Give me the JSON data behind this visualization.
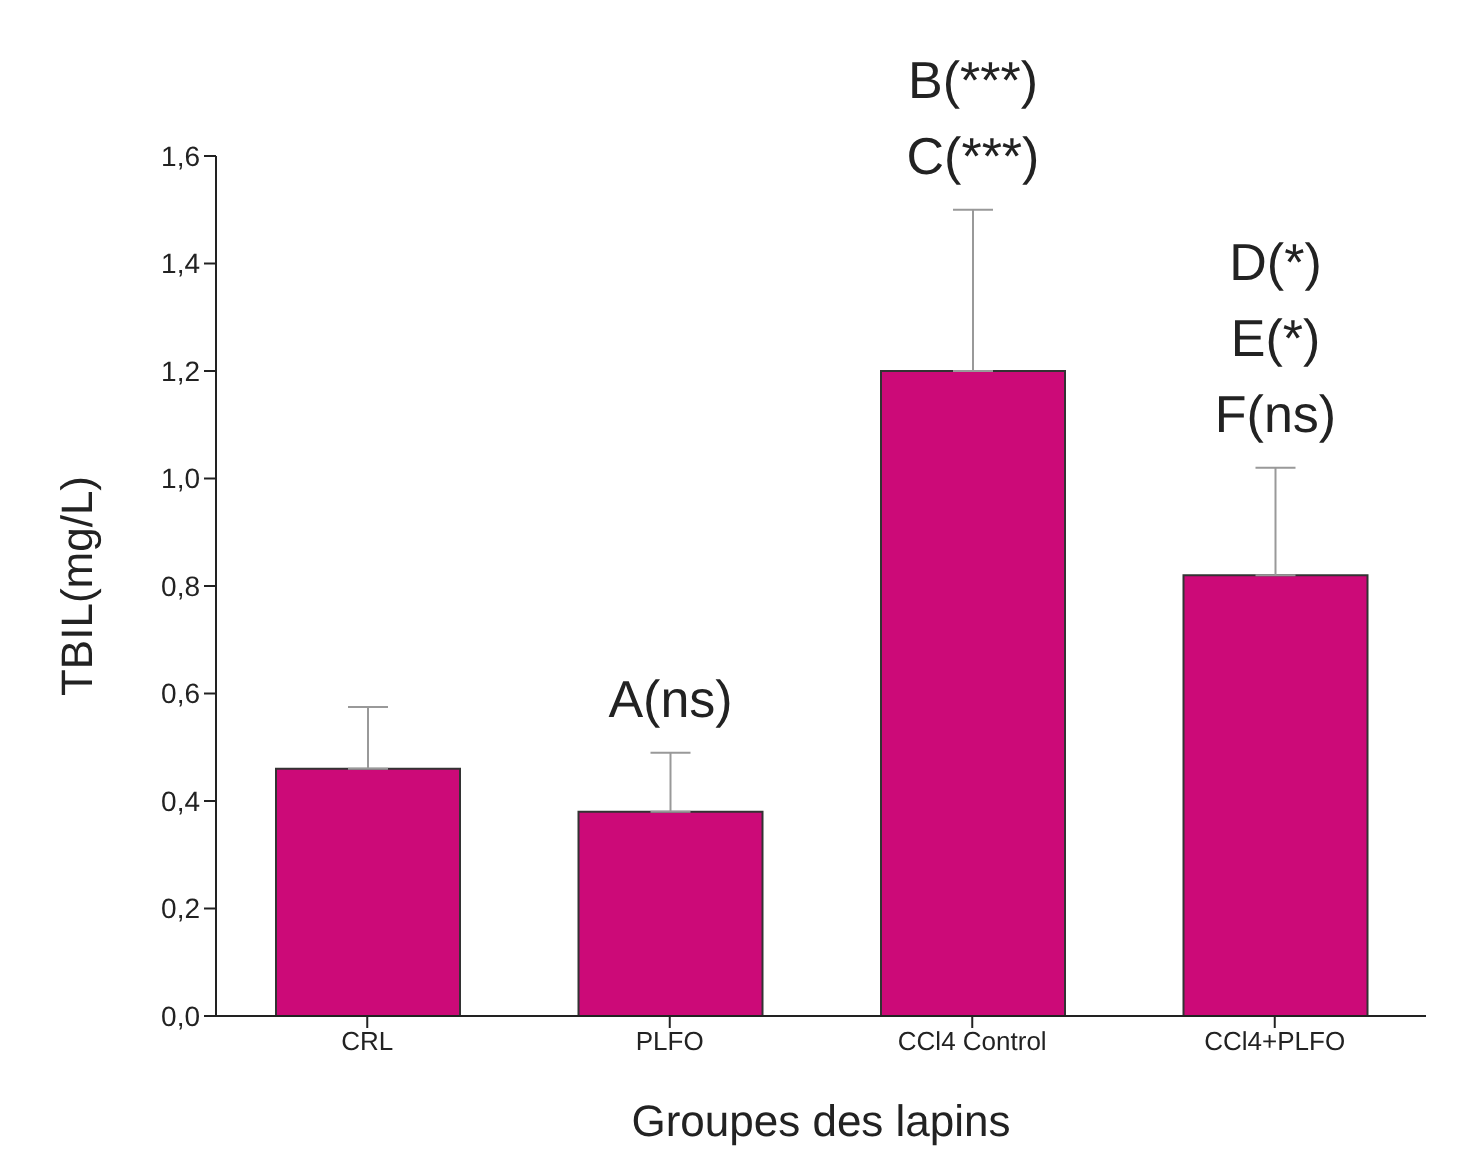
{
  "chart_data": {
    "type": "bar",
    "xlabel": "Groupes des lapins",
    "ylabel": "TBIL(mg/L)",
    "categories": [
      "CRL",
      "PLFO",
      "CCl4 Control",
      "CCl4+PLFO"
    ],
    "values": [
      0.46,
      0.38,
      1.2,
      0.82
    ],
    "errors": [
      [
        0.46,
        0.575
      ],
      [
        0.38,
        0.49
      ],
      [
        1.2,
        1.5
      ],
      [
        0.82,
        1.02
      ]
    ],
    "color": "#cc0a78",
    "ylim": [
      0,
      1.6
    ],
    "yticks": [
      {
        "value": 0,
        "label": "0,0"
      },
      {
        "value": 0.2,
        "label": "0,2"
      },
      {
        "value": 0.4,
        "label": "0,4"
      },
      {
        "value": 0.6,
        "label": "0,6"
      },
      {
        "value": 0.8,
        "label": "0,8"
      },
      {
        "value": 1.0,
        "label": "1,0"
      },
      {
        "value": 1.2,
        "label": "1,2"
      },
      {
        "value": 1.4,
        "label": "1,4"
      },
      {
        "value": 1.6,
        "label": "1,6"
      }
    ],
    "grid": false,
    "value_labels": [
      null,
      "A(ns)",
      "B(***)\nC(***)",
      "D(*)\nE(*)\nF(ns)"
    ]
  }
}
